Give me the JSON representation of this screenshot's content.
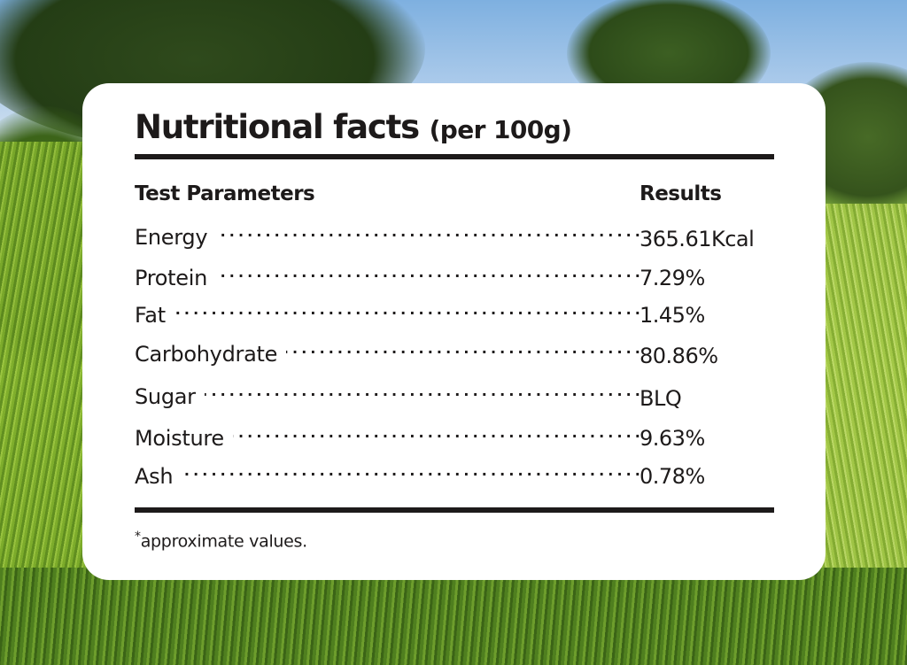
{
  "title": "Nutritional facts",
  "title_unit": "(per 100g)",
  "columns": {
    "parameter": "Test Parameters",
    "result": "Results"
  },
  "rows": [
    {
      "parameter": "Energy",
      "result": "365.61Kcal"
    },
    {
      "parameter": "Protein",
      "result": "7.29%"
    },
    {
      "parameter": "Fat",
      "result": "1.45%"
    },
    {
      "parameter": "Carbohydrate",
      "result": "80.86%"
    },
    {
      "parameter": "Sugar",
      "result": "BLQ"
    },
    {
      "parameter": "Moisture",
      "result": "9.63%"
    },
    {
      "parameter": "Ash",
      "result": "0.78%"
    }
  ],
  "footnote": {
    "mark": "*",
    "text": "approximate values."
  },
  "colors": {
    "text": "#1d1a1a",
    "card": "#ffffff"
  }
}
